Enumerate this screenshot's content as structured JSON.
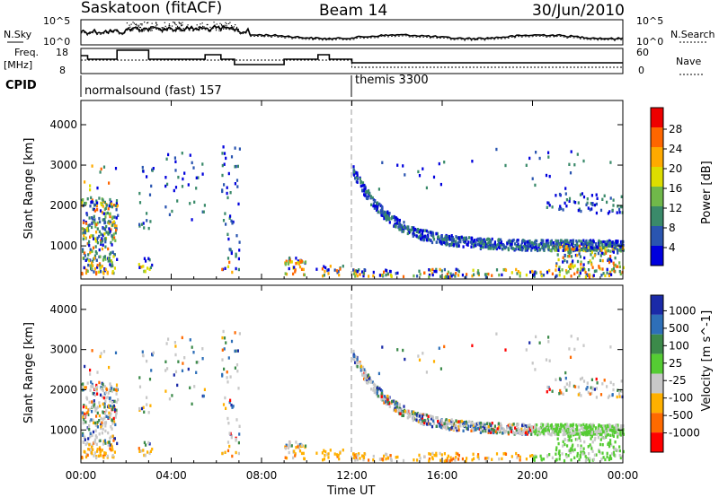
{
  "header": {
    "radar_title": "Saskatoon (fitACF)",
    "beam": "Beam 14",
    "date": "30/Jun/2010"
  },
  "top_panels": {
    "nsky_label": "N.Sky",
    "nsearch_label": "N.Search",
    "freq_label_1": "Freq.",
    "freq_label_2": "[MHz]",
    "nave_label": "Nave",
    "cpid_label": "CPID",
    "noise_left_ticks": [
      "10^5",
      "10^0"
    ],
    "noise_right_ticks": [
      "10^5",
      "10^0"
    ],
    "freq_left_ticks": [
      "18",
      "8"
    ],
    "freq_right_ticks": [
      "60",
      "0"
    ],
    "cpid_segments": [
      {
        "label": "normalsound (fast) 157",
        "start_hour": 0
      },
      {
        "label": "themis 3300",
        "start_hour": 12
      }
    ]
  },
  "chart_data": [
    {
      "type": "heatmap",
      "name": "power",
      "ylabel": "Slant Range [km]",
      "ylim": [
        180,
        4600
      ],
      "yticks": [
        "1000",
        "2000",
        "3000",
        "4000"
      ],
      "xlim_hours": [
        0,
        24
      ],
      "colorbar": {
        "label": "Power [dB]",
        "ticks": [
          "4",
          "8",
          "12",
          "16",
          "20",
          "24",
          "28"
        ],
        "colors": [
          "#0000dd",
          "#2a55b0",
          "#3a8a6a",
          "#70b84a",
          "#dddd00",
          "#ffaa00",
          "#ff6600",
          "#ee0000"
        ]
      },
      "echo_regions": [
        {
          "t0": 0.0,
          "t1": 1.6,
          "r0": 300,
          "r1": 2200,
          "dense": true
        },
        {
          "t0": 2.5,
          "t1": 3.2,
          "r0": 300,
          "r1": 3000,
          "dense": false
        },
        {
          "t0": 3.7,
          "t1": 5.5,
          "r0": 1500,
          "r1": 3400,
          "dense": false
        },
        {
          "t0": 6.2,
          "t1": 7.0,
          "r0": 300,
          "r1": 3500,
          "dense": false
        },
        {
          "t0": 9.0,
          "t1": 10.0,
          "r0": 250,
          "r1": 700,
          "dense": true
        },
        {
          "t0": 10.2,
          "t1": 11.7,
          "r0": 250,
          "r1": 500,
          "dense": true
        },
        {
          "t0": 12.0,
          "t1": 24.0,
          "r0": 250,
          "r1": 3000,
          "dense": true
        }
      ]
    },
    {
      "type": "heatmap",
      "name": "velocity",
      "ylabel": "Slant Range [km]",
      "ylim": [
        180,
        4600
      ],
      "yticks": [
        "1000",
        "2000",
        "3000",
        "4000"
      ],
      "xlim_hours": [
        0,
        24
      ],
      "xticks": [
        "00:00",
        "04:00",
        "08:00",
        "12:00",
        "16:00",
        "20:00",
        "00:00"
      ],
      "xlabel": "Time UT",
      "colorbar": {
        "label": "Velocity [m s^-1]",
        "ticks": [
          "1000",
          "500",
          "100",
          "25",
          "-25",
          "-100",
          "-500",
          "-1000"
        ],
        "colors": [
          "#1a2aa8",
          "#2e6fb8",
          "#3c8a4a",
          "#55cc33",
          "#c8c8c8",
          "#ffb000",
          "#ff6a00",
          "#ff0000"
        ]
      }
    }
  ]
}
